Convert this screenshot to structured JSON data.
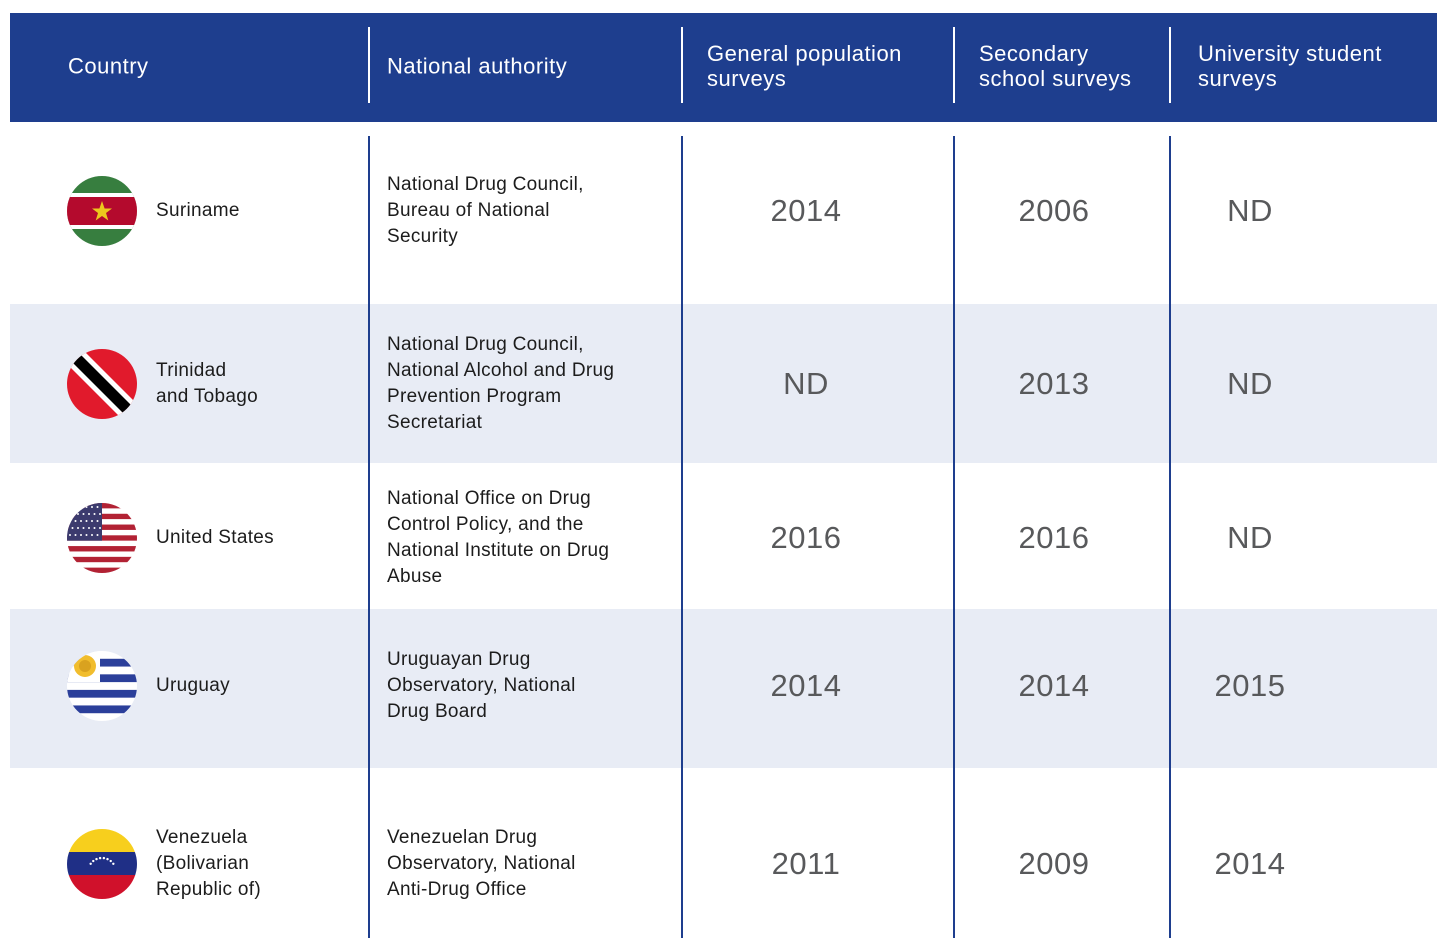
{
  "header": [
    "Country",
    "National authority",
    "General population\nsurveys",
    "Secondary\nschool surveys",
    "University student\nsurveys"
  ],
  "rows": [
    {
      "country": "Suriname",
      "authority": "National Drug Council,\nBureau of National\nSecurity",
      "general": 2014,
      "secondary": 2006,
      "university": "ND"
    },
    {
      "country": "Trinidad\nand Tobago",
      "authority": "National Drug Council,\nNational Alcohol and Drug\nPrevention Program\nSecretariat",
      "general": "ND",
      "secondary": 2013,
      "university": "ND"
    },
    {
      "country": "United States",
      "authority": "National Office on Drug\nControl Policy, and the\nNational Institute on Drug\nAbuse",
      "general": 2016,
      "secondary": 2016,
      "university": "ND"
    },
    {
      "country": "Uruguay",
      "authority": "Uruguayan Drug\nObservatory, National\nDrug Board",
      "general": 2014,
      "secondary": 2014,
      "university": 2015
    },
    {
      "country": "Venezuela\n(Bolivarian\nRepublic of)",
      "authority": "Venezuelan Drug\nObservatory, National\nAnti-Drug Office",
      "general": 2011,
      "secondary": 2009,
      "university": 2014
    }
  ]
}
